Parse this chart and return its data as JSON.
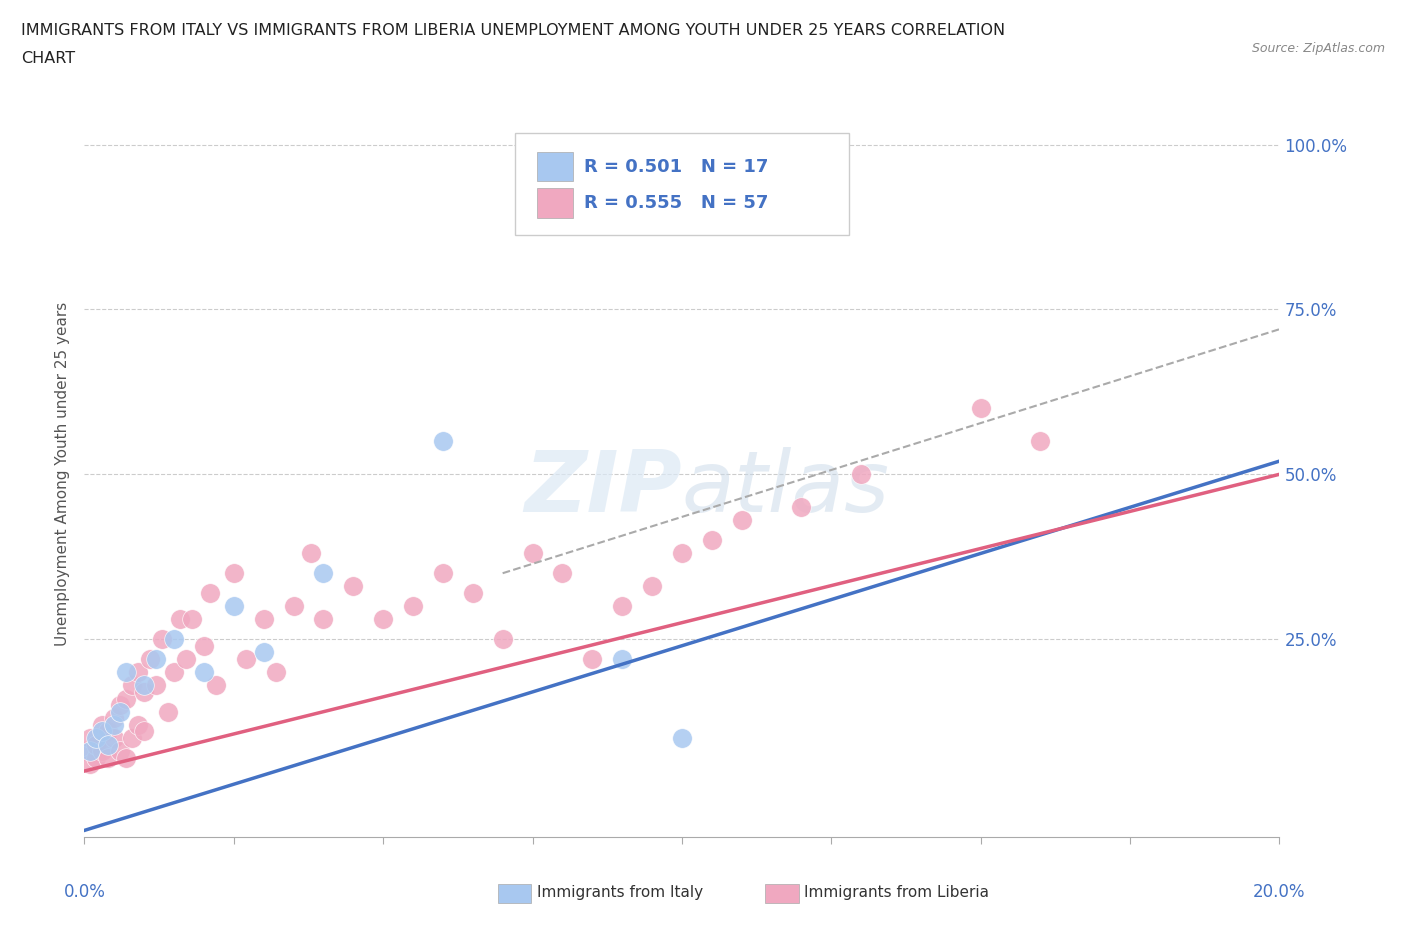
{
  "title_line1": "IMMIGRANTS FROM ITALY VS IMMIGRANTS FROM LIBERIA UNEMPLOYMENT AMONG YOUTH UNDER 25 YEARS CORRELATION",
  "title_line2": "CHART",
  "source": "Source: ZipAtlas.com",
  "ylabel": "Unemployment Among Youth under 25 years",
  "italy_R": 0.501,
  "italy_N": 17,
  "liberia_R": 0.555,
  "liberia_N": 57,
  "italy_color": "#a8c8f0",
  "liberia_color": "#f0a8c0",
  "italy_line_color": "#4472c4",
  "liberia_line_color": "#e06080",
  "trend_dashed_color": "#aaaaaa",
  "background_color": "#ffffff",
  "grid_color": "#cccccc",
  "watermark": "ZIPatlas",
  "xlim": [
    0.0,
    0.2
  ],
  "ylim": [
    -0.05,
    1.05
  ],
  "italy_line_x0": 0.0,
  "italy_line_y0": -0.04,
  "italy_line_x1": 0.2,
  "italy_line_y1": 0.52,
  "liberia_line_x0": 0.0,
  "liberia_line_y0": 0.05,
  "liberia_line_x1": 0.2,
  "liberia_line_y1": 0.5,
  "dash_line_x0": 0.07,
  "dash_line_y0": 0.35,
  "dash_line_x1": 0.2,
  "dash_line_y1": 0.72,
  "italy_scatter_x": [
    0.001,
    0.002,
    0.003,
    0.004,
    0.005,
    0.006,
    0.007,
    0.01,
    0.012,
    0.015,
    0.02,
    0.025,
    0.03,
    0.04,
    0.06,
    0.09,
    0.1
  ],
  "italy_scatter_y": [
    0.08,
    0.1,
    0.11,
    0.09,
    0.12,
    0.14,
    0.2,
    0.18,
    0.22,
    0.25,
    0.2,
    0.3,
    0.23,
    0.35,
    0.55,
    0.22,
    0.1
  ],
  "liberia_scatter_x": [
    0.0,
    0.001,
    0.001,
    0.002,
    0.002,
    0.003,
    0.003,
    0.004,
    0.004,
    0.005,
    0.005,
    0.006,
    0.006,
    0.007,
    0.007,
    0.008,
    0.008,
    0.009,
    0.009,
    0.01,
    0.01,
    0.011,
    0.012,
    0.013,
    0.014,
    0.015,
    0.016,
    0.017,
    0.018,
    0.02,
    0.021,
    0.022,
    0.025,
    0.027,
    0.03,
    0.032,
    0.035,
    0.038,
    0.04,
    0.045,
    0.05,
    0.055,
    0.06,
    0.065,
    0.07,
    0.075,
    0.08,
    0.085,
    0.09,
    0.095,
    0.1,
    0.105,
    0.11,
    0.12,
    0.13,
    0.15,
    0.16
  ],
  "liberia_scatter_y": [
    0.08,
    0.06,
    0.1,
    0.07,
    0.09,
    0.08,
    0.12,
    0.07,
    0.11,
    0.1,
    0.13,
    0.08,
    0.15,
    0.07,
    0.16,
    0.1,
    0.18,
    0.12,
    0.2,
    0.11,
    0.17,
    0.22,
    0.18,
    0.25,
    0.14,
    0.2,
    0.28,
    0.22,
    0.28,
    0.24,
    0.32,
    0.18,
    0.35,
    0.22,
    0.28,
    0.2,
    0.3,
    0.38,
    0.28,
    0.33,
    0.28,
    0.3,
    0.35,
    0.32,
    0.25,
    0.38,
    0.35,
    0.22,
    0.3,
    0.33,
    0.38,
    0.4,
    0.43,
    0.45,
    0.5,
    0.6,
    0.55
  ]
}
